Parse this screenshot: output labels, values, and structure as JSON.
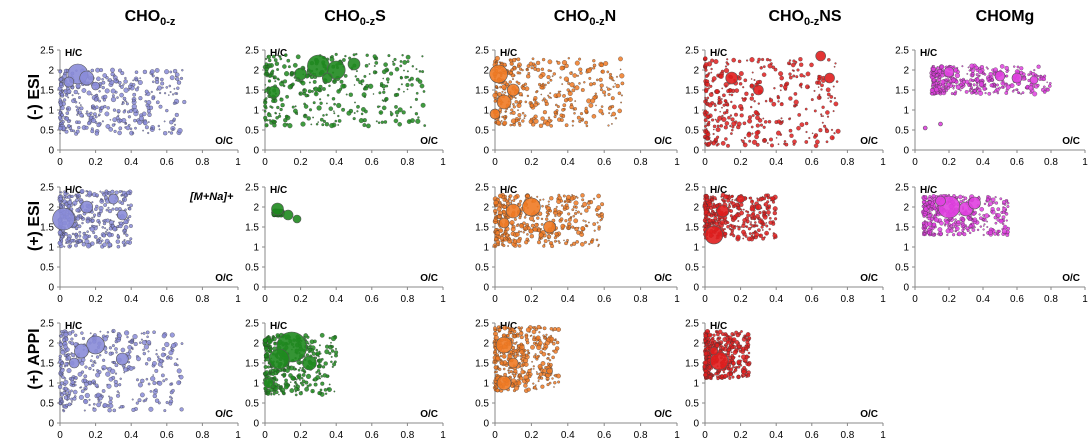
{
  "columns": [
    {
      "base": "CHO",
      "sub": "0-z",
      "suffix": ""
    },
    {
      "base": "CHO",
      "sub": "0-z",
      "suffix": "S"
    },
    {
      "base": "CHO",
      "sub": "0-z",
      "suffix": "N"
    },
    {
      "base": "CHO",
      "sub": "0-z",
      "suffix": "NS"
    },
    {
      "base": "CHOMg",
      "sub": "",
      "suffix": ""
    }
  ],
  "rows": [
    "(-) ESI",
    "(+) ESI",
    "(+) APPI"
  ],
  "annotation": "[M+Na]+",
  "colors": {
    "CHO": "#8a8cd8",
    "CHOS": "#1f8a1f",
    "CHON": "#f07a24",
    "CHONS": "#e01e1e",
    "CHOMg": "#e040e0"
  },
  "chart_data": [
    {
      "type": "scatter",
      "row": 0,
      "col": 0,
      "xlabel": "O/C",
      "ylabel": "H/C",
      "xlim": [
        0,
        1
      ],
      "ylim": [
        0,
        2.5
      ],
      "xticks": [
        "0",
        "0.2",
        "0.4",
        "0.6",
        "0.8",
        "1"
      ],
      "yticks": [
        "0",
        "0.5",
        "1",
        "1.5",
        "2",
        "2.5"
      ],
      "color": "#8a8cd8",
      "cloud": {
        "x": [
          0.0,
          0.7
        ],
        "y": [
          0.4,
          2.0
        ]
      },
      "big": [
        [
          0.1,
          1.9,
          10
        ],
        [
          0.15,
          1.8,
          7
        ],
        [
          0.05,
          1.7,
          5
        ],
        [
          0.2,
          1.6,
          4
        ]
      ]
    },
    {
      "type": "scatter",
      "row": 0,
      "col": 1,
      "xlabel": "O/C",
      "ylabel": "H/C",
      "xlim": [
        0,
        1
      ],
      "ylim": [
        0,
        2.5
      ],
      "xticks": [
        "0",
        "0.2",
        "0.4",
        "0.6",
        "0.8",
        "1"
      ],
      "yticks": [
        "0",
        "0.5",
        "1",
        "1.5",
        "2",
        "2.5"
      ],
      "color": "#1f8a1f",
      "cloud": {
        "x": [
          0.0,
          0.9
        ],
        "y": [
          0.6,
          2.4
        ]
      },
      "big": [
        [
          0.3,
          2.1,
          11
        ],
        [
          0.4,
          2.0,
          9
        ],
        [
          0.5,
          2.15,
          6
        ],
        [
          0.2,
          1.9,
          6
        ],
        [
          0.05,
          1.45,
          6
        ],
        [
          0.35,
          1.8,
          5
        ]
      ]
    },
    {
      "type": "scatter",
      "row": 0,
      "col": 2,
      "xlabel": "O/C",
      "ylabel": "H/C",
      "xlim": [
        0,
        1
      ],
      "ylim": [
        0,
        2.5
      ],
      "xticks": [
        "0",
        "0.2",
        "0.4",
        "0.6",
        "0.8",
        "1"
      ],
      "yticks": [
        "0",
        "0.5",
        "1",
        "1.5",
        "2",
        "2.5"
      ],
      "color": "#f07a24",
      "cloud": {
        "x": [
          0.0,
          0.7
        ],
        "y": [
          0.6,
          2.3
        ]
      },
      "big": [
        [
          0.02,
          1.9,
          9
        ],
        [
          0.05,
          1.2,
          7
        ],
        [
          0.1,
          1.5,
          6
        ],
        [
          0.0,
          0.9,
          5
        ]
      ]
    },
    {
      "type": "scatter",
      "row": 0,
      "col": 3,
      "xlabel": "O/C",
      "ylabel": "H/C",
      "xlim": [
        0,
        1
      ],
      "ylim": [
        0,
        2.5
      ],
      "xticks": [
        "0",
        "0.2",
        "0.4",
        "0.6",
        "0.8",
        "1"
      ],
      "yticks": [
        "0",
        "0.5",
        "1",
        "1.5",
        "2",
        "2.5"
      ],
      "color": "#e01e1e",
      "cloud": {
        "x": [
          0.0,
          0.75
        ],
        "y": [
          0.1,
          2.3
        ]
      },
      "big": [
        [
          0.65,
          2.35,
          5
        ],
        [
          0.15,
          1.8,
          6
        ],
        [
          0.3,
          1.5,
          5
        ],
        [
          0.7,
          1.8,
          5
        ]
      ]
    },
    {
      "type": "scatter",
      "row": 0,
      "col": 4,
      "xlabel": "O/C",
      "ylabel": "H/C",
      "xlim": [
        0,
        1
      ],
      "ylim": [
        0,
        2.5
      ],
      "xticks": [
        "0",
        "0.2",
        "0.4",
        "0.6",
        "0.8",
        "1"
      ],
      "yticks": [
        "0",
        "0.5",
        "1",
        "1.5",
        "2",
        "2.5"
      ],
      "color": "#e040e0",
      "cloud": {
        "x": [
          0.1,
          0.8
        ],
        "y": [
          1.4,
          2.1
        ]
      },
      "big": [
        [
          0.2,
          1.95,
          5
        ],
        [
          0.5,
          1.85,
          5
        ],
        [
          0.6,
          1.8,
          5
        ],
        [
          0.7,
          1.75,
          4
        ],
        [
          0.06,
          0.55,
          2
        ],
        [
          0.15,
          0.65,
          2
        ]
      ]
    },
    {
      "type": "scatter",
      "row": 1,
      "col": 0,
      "xlabel": "O/C",
      "ylabel": "H/C",
      "xlim": [
        0,
        1
      ],
      "ylim": [
        0,
        2.5
      ],
      "xticks": [
        "0",
        "0.2",
        "0.4",
        "0.6",
        "0.8",
        "1"
      ],
      "yticks": [
        "0",
        "0.5",
        "1",
        "1.5",
        "2",
        "2.5"
      ],
      "color": "#8a8cd8",
      "cloud": {
        "x": [
          0.0,
          0.4
        ],
        "y": [
          1.0,
          2.4
        ]
      },
      "big": [
        [
          0.02,
          1.7,
          11
        ],
        [
          0.15,
          2.0,
          6
        ],
        [
          0.3,
          2.2,
          5
        ],
        [
          0.35,
          1.8,
          5
        ]
      ]
    },
    {
      "type": "scatter",
      "row": 1,
      "col": 1,
      "xlabel": "O/C",
      "ylabel": "H/C",
      "xlim": [
        0,
        1
      ],
      "ylim": [
        0,
        2.5
      ],
      "xticks": [
        "0",
        "0.2",
        "0.4",
        "0.6",
        "0.8",
        "1"
      ],
      "yticks": [
        "0",
        "0.5",
        "1",
        "1.5",
        "2",
        "2.5"
      ],
      "color": "#1f8a1f",
      "cloud": {
        "x": [
          0.05,
          0.1
        ],
        "y": [
          1.8,
          1.9
        ]
      },
      "big": [
        [
          0.07,
          1.95,
          6
        ],
        [
          0.13,
          1.8,
          5
        ],
        [
          0.18,
          1.7,
          4
        ]
      ]
    },
    {
      "type": "scatter",
      "row": 1,
      "col": 2,
      "xlabel": "O/C",
      "ylabel": "H/C",
      "xlim": [
        0,
        1
      ],
      "ylim": [
        0,
        2.5
      ],
      "xticks": [
        "0",
        "0.2",
        "0.4",
        "0.6",
        "0.8",
        "1"
      ],
      "yticks": [
        "0",
        "0.5",
        "1",
        "1.5",
        "2",
        "2.5"
      ],
      "color": "#f07a24",
      "cloud": {
        "x": [
          0.0,
          0.6
        ],
        "y": [
          1.0,
          2.3
        ]
      },
      "big": [
        [
          0.2,
          2.0,
          9
        ],
        [
          0.1,
          1.9,
          7
        ],
        [
          0.3,
          1.5,
          6
        ],
        [
          0.05,
          1.6,
          5
        ]
      ]
    },
    {
      "type": "scatter",
      "row": 1,
      "col": 3,
      "xlabel": "O/C",
      "ylabel": "H/C",
      "xlim": [
        0,
        1
      ],
      "ylim": [
        0,
        2.5
      ],
      "xticks": [
        "0",
        "0.2",
        "0.4",
        "0.6",
        "0.8",
        "1"
      ],
      "yticks": [
        "0",
        "0.5",
        "1",
        "1.5",
        "2",
        "2.5"
      ],
      "color": "#e01e1e",
      "cloud": {
        "x": [
          0.0,
          0.4
        ],
        "y": [
          1.2,
          2.3
        ]
      },
      "big": [
        [
          0.05,
          1.3,
          9
        ],
        [
          0.1,
          1.9,
          6
        ],
        [
          0.2,
          2.2,
          4
        ],
        [
          0.3,
          2.0,
          3
        ]
      ]
    },
    {
      "type": "scatter",
      "row": 1,
      "col": 4,
      "xlabel": "O/C",
      "ylabel": "H/C",
      "xlim": [
        0,
        1
      ],
      "ylim": [
        0,
        2.5
      ],
      "xticks": [
        "0",
        "0.2",
        "0.4",
        "0.6",
        "0.8",
        "1"
      ],
      "yticks": [
        "0",
        "0.5",
        "1",
        "1.5",
        "2",
        "2.5"
      ],
      "color": "#e040e0",
      "cloud": {
        "x": [
          0.05,
          0.55
        ],
        "y": [
          1.3,
          2.3
        ]
      },
      "big": [
        [
          0.2,
          2.0,
          11
        ],
        [
          0.3,
          1.95,
          7
        ],
        [
          0.35,
          2.1,
          6
        ],
        [
          0.15,
          2.15,
          5
        ]
      ]
    },
    {
      "type": "scatter",
      "row": 2,
      "col": 0,
      "xlabel": "O/C",
      "ylabel": "H/C",
      "xlim": [
        0,
        1
      ],
      "ylim": [
        0,
        2.5
      ],
      "xticks": [
        "0",
        "0.2",
        "0.4",
        "0.6",
        "0.8",
        "1"
      ],
      "yticks": [
        "0",
        "0.5",
        "1",
        "1.5",
        "2",
        "2.5"
      ],
      "color": "#8a8cd8",
      "cloud": {
        "x": [
          0.0,
          0.7
        ],
        "y": [
          0.3,
          2.3
        ]
      },
      "big": [
        [
          0.2,
          1.95,
          9
        ],
        [
          0.12,
          1.8,
          7
        ],
        [
          0.35,
          1.6,
          6
        ],
        [
          0.08,
          1.5,
          5
        ]
      ]
    },
    {
      "type": "scatter",
      "row": 2,
      "col": 1,
      "xlabel": "O/C",
      "ylabel": "H/C",
      "xlim": [
        0,
        1
      ],
      "ylim": [
        0,
        2.5
      ],
      "xticks": [
        "0",
        "0.2",
        "0.4",
        "0.6",
        "0.8",
        "1"
      ],
      "yticks": [
        "0",
        "0.5",
        "1",
        "1.5",
        "2",
        "2.5"
      ],
      "color": "#1f8a1f",
      "cloud": {
        "x": [
          0.0,
          0.4
        ],
        "y": [
          0.7,
          2.2
        ]
      },
      "big": [
        [
          0.15,
          1.9,
          15
        ],
        [
          0.08,
          1.6,
          10
        ],
        [
          0.25,
          1.5,
          7
        ],
        [
          0.02,
          1.0,
          5
        ]
      ]
    },
    {
      "type": "scatter",
      "row": 2,
      "col": 2,
      "xlabel": "O/C",
      "ylabel": "H/C",
      "xlim": [
        0,
        1
      ],
      "ylim": [
        0,
        2.5
      ],
      "xticks": [
        "0",
        "0.2",
        "0.4",
        "0.6",
        "0.8",
        "1"
      ],
      "yticks": [
        "0",
        "0.5",
        "1",
        "1.5",
        "2",
        "2.5"
      ],
      "color": "#f07a24",
      "cloud": {
        "x": [
          0.0,
          0.35
        ],
        "y": [
          0.8,
          2.4
        ]
      },
      "big": [
        [
          0.05,
          1.95,
          8
        ],
        [
          0.05,
          1.0,
          7
        ],
        [
          0.1,
          1.5,
          5
        ],
        [
          0.3,
          1.3,
          3
        ]
      ]
    },
    {
      "type": "scatter",
      "row": 2,
      "col": 3,
      "xlabel": "O/C",
      "ylabel": "H/C",
      "xlim": [
        0,
        1
      ],
      "ylim": [
        0,
        2.5
      ],
      "xticks": [
        "0",
        "0.2",
        "0.4",
        "0.6",
        "0.8",
        "1"
      ],
      "yticks": [
        "0",
        "0.5",
        "1",
        "1.5",
        "2",
        "2.5"
      ],
      "color": "#e01e1e",
      "cloud": {
        "x": [
          0.0,
          0.25
        ],
        "y": [
          1.1,
          2.3
        ]
      },
      "big": [
        [
          0.08,
          1.55,
          9
        ],
        [
          0.05,
          1.8,
          4
        ]
      ]
    }
  ]
}
